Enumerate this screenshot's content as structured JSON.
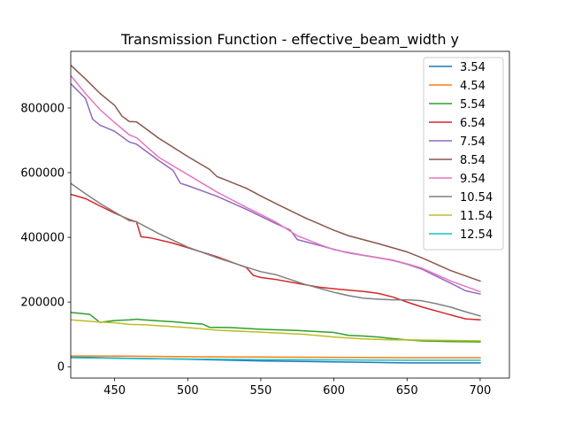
{
  "chart_data": {
    "type": "line",
    "title": "Transmission Function - effective_beam_width y",
    "xlabel": "",
    "ylabel": "",
    "xlim": [
      420,
      720
    ],
    "ylim": [
      -35000,
      975000
    ],
    "xticks": [
      450,
      500,
      550,
      600,
      650,
      700
    ],
    "xtick_labels": [
      "450",
      "500",
      "550",
      "600",
      "650",
      "700"
    ],
    "yticks": [
      0,
      200000,
      400000,
      600000,
      800000
    ],
    "ytick_labels": [
      "0",
      "200000",
      "400000",
      "600000",
      "800000"
    ],
    "grid": false,
    "legend_position": "top-right",
    "series": [
      {
        "name": "3.54",
        "color": "#1f77b4",
        "x": [
          420,
          450,
          500,
          550,
          600,
          650,
          700
        ],
        "y": [
          30000,
          27000,
          23000,
          18000,
          15000,
          12000,
          12000
        ]
      },
      {
        "name": "4.54",
        "color": "#ff7f0e",
        "x": [
          420,
          450,
          500,
          550,
          600,
          650,
          700
        ],
        "y": [
          33000,
          33000,
          31000,
          30000,
          29000,
          28000,
          28000
        ]
      },
      {
        "name": "5.54",
        "color": "#2ca02c",
        "x": [
          420,
          433,
          440,
          450,
          460,
          465,
          470,
          480,
          490,
          500,
          510,
          515,
          530,
          550,
          575,
          600,
          610,
          620,
          630,
          640,
          650,
          660,
          680,
          700
        ],
        "y": [
          168000,
          162000,
          137000,
          143000,
          145000,
          147000,
          145000,
          142000,
          139000,
          135000,
          132000,
          122000,
          121000,
          116000,
          112000,
          106000,
          97000,
          95000,
          92000,
          87000,
          83000,
          80000,
          78000,
          77000
        ]
      },
      {
        "name": "6.54",
        "color": "#d62728",
        "x": [
          420,
          430,
          440,
          450,
          460,
          465,
          468,
          475,
          490,
          500,
          520,
          540,
          545,
          550,
          560,
          575,
          590,
          600,
          620,
          630,
          640,
          650,
          660,
          680,
          690,
          700
        ],
        "y": [
          533000,
          520000,
          497000,
          475000,
          455000,
          448000,
          402000,
          398000,
          382000,
          368000,
          340000,
          307000,
          282000,
          276000,
          270000,
          258000,
          246000,
          241000,
          233000,
          227000,
          216000,
          200000,
          185000,
          160000,
          148000,
          145000
        ]
      },
      {
        "name": "7.54",
        "color": "#9467bd",
        "x": [
          420,
          430,
          435,
          440,
          450,
          460,
          465,
          480,
          490,
          495,
          500,
          520,
          540,
          560,
          570,
          575,
          590,
          600,
          610,
          630,
          640,
          650,
          660,
          670,
          680,
          690,
          700
        ],
        "y": [
          875000,
          830000,
          765000,
          747000,
          728000,
          695000,
          688000,
          638000,
          607000,
          567000,
          560000,
          527000,
          487000,
          443000,
          423000,
          393000,
          375000,
          363000,
          352000,
          337000,
          329000,
          317000,
          302000,
          280000,
          258000,
          235000,
          225000
        ]
      },
      {
        "name": "8.54",
        "color": "#8c564b",
        "x": [
          420,
          430,
          440,
          450,
          455,
          460,
          465,
          480,
          500,
          515,
          520,
          540,
          550,
          560,
          580,
          600,
          610,
          630,
          650,
          660,
          680,
          700
        ],
        "y": [
          932000,
          890000,
          845000,
          808000,
          775000,
          758000,
          757000,
          707000,
          650000,
          610000,
          588000,
          552000,
          528000,
          505000,
          461000,
          422000,
          405000,
          381000,
          355000,
          337000,
          297000,
          265000
        ]
      },
      {
        "name": "9.54",
        "color": "#e377c2",
        "x": [
          420,
          430,
          440,
          450,
          460,
          465,
          480,
          500,
          520,
          540,
          560,
          575,
          590,
          600,
          620,
          640,
          650,
          660,
          680,
          700
        ],
        "y": [
          900000,
          845000,
          795000,
          755000,
          717000,
          708000,
          648000,
          594000,
          540000,
          493000,
          448000,
          405000,
          378000,
          362000,
          345000,
          330000,
          318000,
          305000,
          265000,
          232000
        ]
      },
      {
        "name": "10.54",
        "color": "#7f7f7f",
        "x": [
          420,
          430,
          440,
          450,
          460,
          465,
          480,
          500,
          520,
          540,
          550,
          560,
          580,
          600,
          610,
          620,
          630,
          640,
          650,
          660,
          670,
          680,
          690,
          700
        ],
        "y": [
          567000,
          535000,
          505000,
          478000,
          452000,
          448000,
          412000,
          370000,
          337000,
          308000,
          294000,
          285000,
          255000,
          230000,
          220000,
          212000,
          209000,
          207000,
          207000,
          204000,
          195000,
          184000,
          170000,
          157000
        ]
      },
      {
        "name": "11.54",
        "color": "#bcbd22",
        "x": [
          420,
          440,
          450,
          460,
          470,
          500,
          520,
          550,
          580,
          600,
          620,
          640,
          650,
          700
        ],
        "y": [
          145000,
          138000,
          136000,
          131000,
          130000,
          121000,
          113000,
          107000,
          100000,
          92000,
          86000,
          83000,
          83000,
          80000
        ]
      },
      {
        "name": "12.54",
        "color": "#17becf",
        "x": [
          420,
          450,
          500,
          550,
          600,
          650,
          700
        ],
        "y": [
          28000,
          26000,
          24000,
          22000,
          21000,
          20000,
          20000
        ]
      }
    ]
  }
}
